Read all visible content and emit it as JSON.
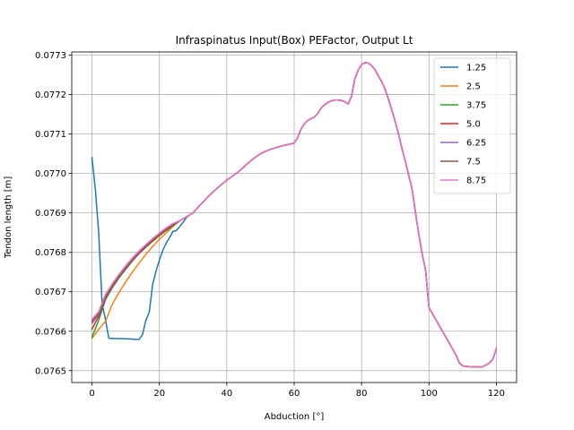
{
  "chart_data": {
    "type": "line",
    "title": "Infraspinatus Input(Box) PEFactor, Output Lt",
    "xlabel": "Abduction [°]",
    "ylabel": "Tendon length [m]",
    "xlim": [
      -6,
      126
    ],
    "ylim": [
      0.07647,
      0.077308
    ],
    "xticks": [
      0,
      20,
      40,
      60,
      80,
      100,
      120
    ],
    "xtick_labels": [
      "0",
      "20",
      "40",
      "60",
      "80",
      "100",
      "120"
    ],
    "yticks": [
      0.0765,
      0.0766,
      0.0767,
      0.0768,
      0.0769,
      0.077,
      0.0771,
      0.0772,
      0.0773
    ],
    "ytick_labels": [
      "0.0765",
      "0.0766",
      "0.0767",
      "0.0768",
      "0.0769",
      "0.0770",
      "0.0771",
      "0.0772",
      "0.0773"
    ],
    "grid": true,
    "legend_position": "top-right",
    "shared_tail": {
      "x": [
        30,
        32,
        34,
        36,
        38,
        40,
        42,
        44,
        46,
        48,
        50,
        52,
        54,
        56,
        58,
        60,
        61,
        62,
        63,
        64,
        65,
        66,
        67,
        68,
        69,
        70,
        71,
        72,
        73,
        74,
        75,
        76,
        77,
        78,
        79,
        80,
        81,
        82,
        83,
        84,
        85,
        86,
        87,
        88,
        89,
        90,
        91,
        92,
        93,
        94,
        95,
        96,
        97,
        98,
        99,
        100,
        102,
        104,
        106,
        108,
        109,
        110,
        112,
        114,
        116,
        118,
        119,
        120
      ],
      "y": [
        0.0769,
        0.076919,
        0.076937,
        0.076954,
        0.076969,
        0.076983,
        0.076995,
        0.077008,
        0.077024,
        0.077038,
        0.07705,
        0.077058,
        0.077064,
        0.077069,
        0.077073,
        0.077077,
        0.07709,
        0.077112,
        0.077126,
        0.077134,
        0.077139,
        0.077143,
        0.077152,
        0.077166,
        0.077174,
        0.07718,
        0.077184,
        0.077186,
        0.077186,
        0.077185,
        0.077182,
        0.077176,
        0.077195,
        0.07724,
        0.077262,
        0.077276,
        0.077281,
        0.07728,
        0.077273,
        0.077263,
        0.077247,
        0.077232,
        0.077213,
        0.077188,
        0.07716,
        0.077131,
        0.077099,
        0.077063,
        0.07703,
        0.076995,
        0.07696,
        0.0769,
        0.076845,
        0.076795,
        0.076755,
        0.07666,
        0.07663,
        0.0766,
        0.07657,
        0.07654,
        0.07652,
        0.076512,
        0.07651,
        0.07651,
        0.07651,
        0.07652,
        0.07653,
        0.076557
      ]
    },
    "series": [
      {
        "name": "1.25",
        "color": "#1f77b4",
        "x": [
          0,
          1,
          2,
          3,
          4,
          5,
          10,
          14,
          15,
          16,
          17,
          18,
          19,
          20,
          21,
          22,
          23,
          24,
          25,
          26,
          27,
          28,
          29
        ],
        "y": [
          0.07704,
          0.07696,
          0.07685,
          0.07667,
          0.07663,
          0.076582,
          0.076581,
          0.076579,
          0.076592,
          0.076628,
          0.076648,
          0.076718,
          0.076752,
          0.07678,
          0.076805,
          0.076823,
          0.076837,
          0.076853,
          0.076855,
          0.076865,
          0.076876,
          0.076888,
          0.076895
        ]
      },
      {
        "name": "2.5",
        "color": "#ff7f0e",
        "x": [
          0,
          2,
          4,
          6,
          8,
          10,
          12,
          14,
          16,
          18,
          20,
          22,
          24,
          26
        ],
        "y": [
          0.076582,
          0.076605,
          0.076625,
          0.076668,
          0.076698,
          0.076725,
          0.07675,
          0.076773,
          0.076795,
          0.076815,
          0.076833,
          0.076849,
          0.076865,
          0.07688
        ]
      },
      {
        "name": "3.75",
        "color": "#2ca02c",
        "x": [
          0,
          2,
          4,
          6,
          8,
          10,
          12,
          14,
          16,
          18,
          20,
          22,
          24,
          26
        ],
        "y": [
          0.076585,
          0.076628,
          0.07668,
          0.07671,
          0.076735,
          0.076757,
          0.076778,
          0.076797,
          0.076813,
          0.076828,
          0.076842,
          0.076855,
          0.076867,
          0.07688
        ]
      },
      {
        "name": "5.0",
        "color": "#d62728",
        "x": [
          0,
          2,
          4,
          6,
          8,
          10,
          12,
          14,
          16,
          18,
          20,
          22,
          24,
          26
        ],
        "y": [
          0.076605,
          0.076638,
          0.076685,
          0.076713,
          0.076738,
          0.07676,
          0.07678,
          0.076798,
          0.076815,
          0.07683,
          0.076844,
          0.076857,
          0.076869,
          0.07688
        ]
      },
      {
        "name": "6.25",
        "color": "#9467bd",
        "x": [
          0,
          2,
          4,
          6,
          8,
          10,
          12,
          14,
          16,
          18,
          20,
          22,
          24,
          26
        ],
        "y": [
          0.07662,
          0.076643,
          0.076688,
          0.076716,
          0.07674,
          0.076762,
          0.076782,
          0.0768,
          0.076817,
          0.076832,
          0.076846,
          0.076859,
          0.07687,
          0.07688
        ]
      },
      {
        "name": "7.5",
        "color": "#8c564b",
        "x": [
          0,
          2,
          4,
          6,
          8,
          10,
          12,
          14,
          16,
          18,
          20,
          22,
          24,
          26
        ],
        "y": [
          0.076625,
          0.076646,
          0.07669,
          0.076718,
          0.076742,
          0.076764,
          0.076784,
          0.076802,
          0.076818,
          0.076833,
          0.076847,
          0.07686,
          0.076871,
          0.07688
        ]
      },
      {
        "name": "8.75",
        "color": "#e377c2",
        "x": [
          0,
          2,
          4,
          6,
          8,
          10,
          12,
          14,
          16,
          18,
          20,
          22,
          24,
          26
        ],
        "y": [
          0.07663,
          0.07665,
          0.076693,
          0.07672,
          0.076744,
          0.076766,
          0.076786,
          0.076804,
          0.07682,
          0.076835,
          0.076849,
          0.076862,
          0.076873,
          0.07688
        ]
      }
    ]
  }
}
